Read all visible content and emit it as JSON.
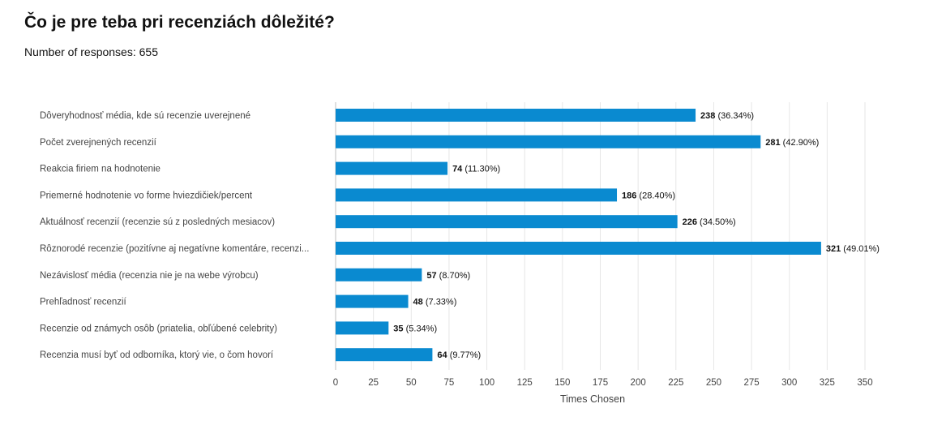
{
  "title": "Čo je pre teba pri recenziách dôležité?",
  "subtitle": "Number of responses: 655",
  "colors": {
    "bar": "#0a8ad0",
    "grid": "#e6e6e6",
    "baseline": "#bfbfbf"
  },
  "chart_data": {
    "type": "bar",
    "orientation": "horizontal",
    "categories": [
      "Dôveryhodnosť média, kde sú recenzie uverejnené",
      "Počet zverejnených recenzií",
      "Reakcia firiem na hodnotenie",
      "Priemerné hodnotenie vo forme hviezdičiek/percent",
      "Aktuálnosť recenzií (recenzie sú z posledných mesiacov)",
      "Rôznorodé recenzie (pozitívne aj negatívne komentáre, recenzi...",
      "Nezávislosť média (recenzia nie je na webe výrobcu)",
      "Prehľadnosť recenzií",
      "Recenzie od známych osôb (priatelia, obľúbené celebrity)",
      "Recenzia musí byť od odborníka, ktorý vie, o čom hovorí"
    ],
    "values": [
      238,
      281,
      74,
      186,
      226,
      321,
      57,
      48,
      35,
      64
    ],
    "percent_labels": [
      "(36.34%)",
      "(42.90%)",
      "(11.30%)",
      "(28.40%)",
      "(34.50%)",
      "(49.01%)",
      "(8.70%)",
      "(7.33%)",
      "(5.34%)",
      "(9.77%)"
    ],
    "xlabel": "Times Chosen",
    "xlim": [
      0,
      350
    ],
    "xticks": [
      0,
      25,
      50,
      75,
      100,
      125,
      150,
      175,
      200,
      225,
      250,
      275,
      300,
      325,
      350
    ],
    "grid": true,
    "legend": "none"
  }
}
